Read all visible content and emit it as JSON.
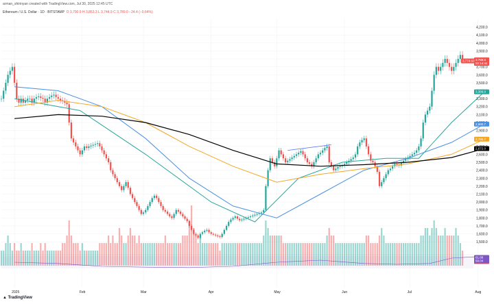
{
  "header": {
    "publisher": "arman_shirinyan created with TradingView.com, Jul 30, 2025 12:45 UTC",
    "symbol": "Ethereum / U.S. Dollar · 1D · BITSTAMP",
    "ohlc": "O 3,790.9  H 3,853.3  L 3,744.9  C 3,789.0  −24.4 (−0.64%)"
  },
  "price_labels": [
    {
      "text": "3,789.0",
      "value": 3789,
      "color": "#ef5350"
    },
    {
      "text": "3,774.60",
      "value": 3774.6,
      "color": "#ef5350"
    },
    {
      "text": "00:14:44",
      "value": 3745,
      "color": "#ef5350"
    },
    {
      "text": "3,386.0",
      "value": 3386,
      "color": "#26a69a"
    },
    {
      "text": "2,980.7",
      "value": 2980.7,
      "color": "#4a90e2"
    },
    {
      "text": "2,790.7",
      "value": 2790.7,
      "color": "#f5a623"
    },
    {
      "text": "2,672.0",
      "value": 2672,
      "color": "#000000"
    }
  ],
  "volume_label": {
    "text": "2,41K",
    "color": "#ef5350"
  },
  "rsi_labels": [
    {
      "text": "61.88",
      "value": 61.88,
      "color": "#7e57c2"
    },
    {
      "text": "58.04",
      "value": 58.04,
      "color": "#7e57c2"
    }
  ],
  "logo": "TradingView",
  "chart_data": {
    "type": "candlestick",
    "title": "",
    "xlabel": "",
    "ylabel": "",
    "ylim": [
      1200,
      4300
    ],
    "y_ticks": [
      1500,
      1600,
      1700,
      1800,
      1900,
      2000,
      2100,
      2200,
      2300,
      2400,
      2500,
      2600,
      2700,
      2800,
      2900,
      3000,
      3100,
      3200,
      3300,
      3400,
      3500,
      3600,
      3700,
      3800,
      3900,
      4000,
      4100,
      4200
    ],
    "x_ticks": [
      {
        "label": "2025",
        "day": 0
      },
      {
        "label": "Feb",
        "day": 31
      },
      {
        "label": "Mar",
        "day": 59
      },
      {
        "label": "Apr",
        "day": 90
      },
      {
        "label": "May",
        "day": 120
      },
      {
        "label": "Jun",
        "day": 151
      },
      {
        "label": "Jul",
        "day": 181
      },
      {
        "label": "Aug",
        "day": 212
      }
    ],
    "start_day": -6,
    "days": 216,
    "closes": [
      3300,
      3400,
      3500,
      3600,
      3650,
      3700,
      3500,
      3300,
      3250,
      3300,
      3250,
      3280,
      3300,
      3300,
      3250,
      3300,
      3320,
      3330,
      3310,
      3300,
      3250,
      3300,
      3320,
      3340,
      3350,
      3320,
      3300,
      3280,
      3270,
      3250,
      3230,
      3000,
      2800,
      2750,
      2700,
      2650,
      2600,
      2650,
      2700,
      2680,
      2700,
      2710,
      2720,
      2730,
      2740,
      2700,
      2650,
      2600,
      2550,
      2500,
      2400,
      2350,
      2300,
      2250,
      2200,
      2150,
      2200,
      2250,
      2180,
      2100,
      2050,
      2000,
      1950,
      1900,
      1850,
      1870,
      1900,
      1950,
      2000,
      2050,
      2080,
      2050,
      2000,
      1950,
      1900,
      1880,
      1850,
      1820,
      1800,
      1850,
      1900,
      1880,
      1850,
      1820,
      1790,
      1760,
      1700,
      1650,
      1600,
      1580,
      1550,
      1600,
      1620,
      1640,
      1650,
      1620,
      1600,
      1590,
      1580,
      1570,
      1560,
      1600,
      1650,
      1700,
      1750,
      1780,
      1800,
      1820,
      1790,
      1770,
      1780,
      1790,
      1800,
      1810,
      1820,
      1830,
      1840,
      1850,
      1860,
      1870,
      1900,
      2200,
      2400,
      2550,
      2500,
      2450,
      2550,
      2650,
      2600,
      2550,
      2500,
      2520,
      2540,
      2560,
      2580,
      2600,
      2620,
      2640,
      2600,
      2550,
      2500,
      2480,
      2450,
      2500,
      2550,
      2600,
      2620,
      2650,
      2680,
      2700,
      2500,
      2450,
      2400,
      2420,
      2440,
      2450,
      2460,
      2480,
      2500,
      2520,
      2540,
      2560,
      2600,
      2700,
      2750,
      2780,
      2800,
      2700,
      2600,
      2520,
      2500,
      2450,
      2380,
      2200,
      2250,
      2300,
      2350,
      2400,
      2420,
      2450,
      2480,
      2470,
      2460,
      2500,
      2520,
      2540,
      2560,
      2580,
      2600,
      2620,
      2650,
      2700,
      2800,
      3000,
      3100,
      3150,
      3200,
      3400,
      3600,
      3700,
      3650,
      3700,
      3750,
      3800,
      3750,
      3700,
      3650,
      3700,
      3750,
      3800,
      3850,
      3789
    ],
    "volume_levels": [
      0.2,
      0.2,
      0.3,
      0.4,
      0.3,
      0.2,
      0.3,
      0.2,
      0.2,
      0.3,
      0.2,
      0.2,
      0.2,
      0.2,
      0.3,
      0.2,
      0.2,
      0.2,
      0.3,
      0.2,
      0.3,
      0.2,
      0.2,
      0.2,
      0.2,
      0.2,
      0.2,
      0.2,
      0.3,
      0.3,
      0.4,
      0.6,
      0.4,
      0.3,
      0.3,
      0.3,
      0.2,
      0.3,
      0.2,
      0.2,
      0.2,
      0.2,
      0.2,
      0.2,
      0.2,
      0.3,
      0.3,
      0.3,
      0.3,
      0.4,
      0.3,
      0.4,
      0.3,
      0.3,
      0.5,
      0.4,
      0.3,
      0.3,
      0.4,
      0.5,
      0.4,
      0.4,
      0.3,
      0.4,
      0.3,
      0.3,
      0.3,
      0.3,
      0.3,
      0.3,
      0.3,
      0.3,
      0.3,
      0.3,
      0.3,
      0.4,
      0.3,
      0.3,
      0.3,
      0.3,
      0.3,
      0.3,
      0.3,
      0.4,
      0.4,
      0.4,
      0.6,
      0.8,
      0.5,
      0.4,
      0.3,
      0.4,
      0.3,
      0.3,
      0.3,
      0.3,
      0.3,
      0.3,
      0.3,
      0.3,
      0.2,
      0.3,
      0.3,
      0.3,
      0.3,
      0.3,
      0.3,
      0.3,
      0.3,
      0.3,
      0.3,
      0.3,
      0.3,
      0.3,
      0.3,
      0.3,
      0.3,
      0.3,
      0.3,
      0.3,
      0.4,
      0.6,
      0.5,
      0.4,
      0.4,
      0.4,
      0.4,
      0.4,
      0.4,
      0.3,
      0.3,
      0.3,
      0.3,
      0.3,
      0.3,
      0.3,
      0.3,
      0.3,
      0.3,
      0.3,
      0.3,
      0.3,
      0.3,
      0.3,
      0.3,
      0.3,
      0.3,
      0.3,
      0.3,
      0.4,
      0.5,
      0.4,
      0.4,
      0.3,
      0.3,
      0.3,
      0.3,
      0.3,
      0.3,
      0.3,
      0.3,
      0.3,
      0.3,
      0.3,
      0.3,
      0.3,
      0.3,
      0.4,
      0.4,
      0.3,
      0.3,
      0.3,
      0.3,
      0.4,
      0.5,
      0.4,
      0.3,
      0.3,
      0.3,
      0.3,
      0.3,
      0.3,
      0.3,
      0.3,
      0.3,
      0.3,
      0.3,
      0.3,
      0.3,
      0.3,
      0.3,
      0.3,
      0.4,
      0.4,
      0.5,
      0.5,
      0.4,
      0.5,
      0.6,
      0.5,
      0.4,
      0.4,
      0.4,
      0.5,
      0.4,
      0.4,
      0.4,
      0.4,
      0.5,
      0.4,
      0.3
    ],
    "ma_series": [
      {
        "color": "#26a69a",
        "points": [
          [
            0,
            3300
          ],
          [
            30,
            3150
          ],
          [
            60,
            2600
          ],
          [
            90,
            2000
          ],
          [
            110,
            1750
          ],
          [
            130,
            2300
          ],
          [
            150,
            2500
          ],
          [
            170,
            2550
          ],
          [
            185,
            2550
          ],
          [
            200,
            3000
          ],
          [
            215,
            3386
          ]
        ]
      },
      {
        "color": "#4a90e2",
        "points": [
          [
            0,
            3450
          ],
          [
            20,
            3400
          ],
          [
            40,
            3200
          ],
          [
            60,
            2800
          ],
          [
            80,
            2300
          ],
          [
            100,
            1950
          ],
          [
            120,
            1800
          ],
          [
            140,
            2100
          ],
          [
            160,
            2400
          ],
          [
            180,
            2550
          ],
          [
            200,
            2750
          ],
          [
            215,
            2980
          ]
        ]
      },
      {
        "color": "#f5a623",
        "points": [
          [
            0,
            3200
          ],
          [
            20,
            3280
          ],
          [
            40,
            3200
          ],
          [
            60,
            3000
          ],
          [
            80,
            2700
          ],
          [
            100,
            2450
          ],
          [
            120,
            2250
          ],
          [
            140,
            2350
          ],
          [
            160,
            2420
          ],
          [
            180,
            2480
          ],
          [
            200,
            2600
          ],
          [
            215,
            2790
          ]
        ]
      },
      {
        "color": "#000000",
        "points": [
          [
            0,
            3050
          ],
          [
            20,
            3100
          ],
          [
            40,
            3080
          ],
          [
            60,
            3000
          ],
          [
            80,
            2850
          ],
          [
            100,
            2650
          ],
          [
            120,
            2480
          ],
          [
            140,
            2450
          ],
          [
            160,
            2470
          ],
          [
            180,
            2500
          ],
          [
            200,
            2560
          ],
          [
            215,
            2672
          ]
        ]
      }
    ],
    "trendline": {
      "color": "#4a6cf7",
      "points": [
        [
          125,
          2650
        ],
        [
          145,
          2720
        ]
      ]
    },
    "rsi": {
      "color": "#7e57c2",
      "range": [
        40,
        70
      ],
      "points": [
        [
          0,
          55
        ],
        [
          20,
          52
        ],
        [
          40,
          45
        ],
        [
          60,
          43
        ],
        [
          80,
          42
        ],
        [
          100,
          45
        ],
        [
          120,
          55
        ],
        [
          140,
          60
        ],
        [
          160,
          52
        ],
        [
          175,
          50
        ],
        [
          190,
          52
        ],
        [
          200,
          65
        ],
        [
          210,
          68
        ],
        [
          215,
          62
        ]
      ]
    }
  }
}
